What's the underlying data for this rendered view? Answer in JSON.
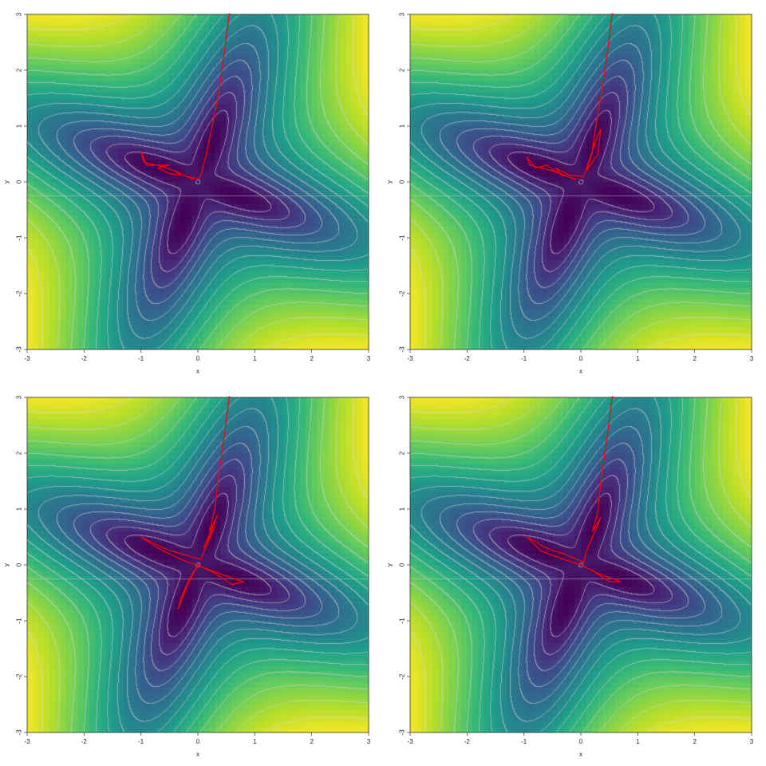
{
  "chart_data": [
    {
      "type": "heatmap",
      "colormap": "viridis",
      "contours": true,
      "xlabel": "x",
      "ylabel": "y",
      "xlim": [
        -3,
        3
      ],
      "ylim": [
        -3,
        3
      ],
      "xticks": [
        "-3",
        "-2",
        "-1",
        "0",
        "1",
        "2",
        "3"
      ],
      "yticks": [
        "-3",
        "-2",
        "-1",
        "0",
        "1",
        "2",
        "3"
      ],
      "path_color": "#ff0000",
      "path": [
        [
          0.55,
          3
        ],
        [
          0.45,
          2.2
        ],
        [
          0.35,
          1.5
        ],
        [
          0.25,
          1.0
        ],
        [
          0.15,
          0.5
        ],
        [
          0.06,
          0.15
        ],
        [
          0.02,
          0.05
        ],
        [
          -0.2,
          0.1
        ],
        [
          -0.4,
          0.2
        ],
        [
          -0.3,
          0.12
        ],
        [
          -0.5,
          0.15
        ],
        [
          -0.7,
          0.25
        ],
        [
          -0.5,
          0.3
        ],
        [
          -0.9,
          0.3
        ],
        [
          -1.0,
          0.55
        ],
        [
          -0.95,
          0.35
        ],
        [
          -0.6,
          0.27
        ],
        [
          -0.3,
          0.15
        ],
        [
          -0.1,
          0.05
        ]
      ]
    },
    {
      "type": "heatmap",
      "colormap": "viridis",
      "contours": true,
      "xlabel": "x",
      "ylabel": "y",
      "xlim": [
        -3,
        3
      ],
      "ylim": [
        -3,
        3
      ],
      "xticks": [
        "-3",
        "-2",
        "-1",
        "0",
        "1",
        "2",
        "3"
      ],
      "yticks": [
        "-3",
        "-2",
        "-1",
        "0",
        "1",
        "2",
        "3"
      ],
      "path_color": "#ff0000",
      "path": [
        [
          0.55,
          3
        ],
        [
          0.45,
          2.2
        ],
        [
          0.35,
          1.5
        ],
        [
          0.28,
          1.1
        ],
        [
          0.2,
          0.6
        ],
        [
          0.35,
          0.95
        ],
        [
          0.3,
          0.5
        ],
        [
          0.1,
          0.2
        ],
        [
          0.25,
          0.7
        ],
        [
          0.05,
          0.1
        ],
        [
          -0.2,
          0.12
        ],
        [
          -0.45,
          0.25
        ],
        [
          -0.3,
          0.1
        ],
        [
          -0.6,
          0.3
        ],
        [
          -0.8,
          0.25
        ],
        [
          -0.95,
          0.45
        ],
        [
          -0.9,
          0.3
        ],
        [
          -0.5,
          0.2
        ],
        [
          -0.1,
          0.05
        ]
      ]
    },
    {
      "type": "heatmap",
      "colormap": "viridis",
      "contours": true,
      "xlabel": "x",
      "ylabel": "y",
      "xlim": [
        -3,
        3
      ],
      "ylim": [
        -3,
        3
      ],
      "xticks": [
        "-3",
        "-2",
        "-1",
        "0",
        "1",
        "2",
        "3"
      ],
      "yticks": [
        "-3",
        "-2",
        "-1",
        "0",
        "1",
        "2",
        "3"
      ],
      "path_color": "#ff0000",
      "path": [
        [
          0.55,
          3
        ],
        [
          0.45,
          2.2
        ],
        [
          0.35,
          1.5
        ],
        [
          0.3,
          1.0
        ],
        [
          0.2,
          0.6
        ],
        [
          0.35,
          0.9
        ],
        [
          0.1,
          0.3
        ],
        [
          0.3,
          0.7
        ],
        [
          0.05,
          0.1
        ],
        [
          -0.3,
          0.2
        ],
        [
          -0.6,
          0.3
        ],
        [
          -1.0,
          0.5
        ],
        [
          -0.7,
          0.3
        ],
        [
          -0.3,
          0.1
        ],
        [
          0.1,
          -0.05
        ],
        [
          0.5,
          -0.2
        ],
        [
          0.8,
          -0.3
        ],
        [
          0.6,
          -0.35
        ],
        [
          0.3,
          -0.15
        ],
        [
          0.0,
          0.0
        ],
        [
          -0.2,
          -0.4
        ],
        [
          -0.35,
          -0.8
        ],
        [
          -0.3,
          -0.6
        ],
        [
          -0.15,
          -0.25
        ],
        [
          0.0,
          0.0
        ]
      ]
    },
    {
      "type": "heatmap",
      "colormap": "viridis",
      "contours": true,
      "xlabel": "x",
      "ylabel": "y",
      "xlim": [
        -3,
        3
      ],
      "ylim": [
        -3,
        3
      ],
      "xticks": [
        "-3",
        "-2",
        "-1",
        "0",
        "1",
        "2",
        "3"
      ],
      "yticks": [
        "-3",
        "-2",
        "-1",
        "0",
        "1",
        "2",
        "3"
      ],
      "path_color": "#ff0000",
      "path": [
        [
          0.55,
          3
        ],
        [
          0.45,
          2.2
        ],
        [
          0.35,
          1.5
        ],
        [
          0.3,
          0.95
        ],
        [
          0.2,
          0.6
        ],
        [
          0.35,
          0.85
        ],
        [
          0.1,
          0.25
        ],
        [
          0.05,
          0.05
        ],
        [
          -0.3,
          0.2
        ],
        [
          -0.6,
          0.3
        ],
        [
          -0.95,
          0.5
        ],
        [
          -0.7,
          0.25
        ],
        [
          -0.3,
          0.1
        ],
        [
          0.0,
          0.0
        ],
        [
          0.3,
          -0.15
        ],
        [
          0.7,
          -0.3
        ],
        [
          0.5,
          -0.3
        ],
        [
          0.2,
          -0.1
        ]
      ]
    }
  ]
}
